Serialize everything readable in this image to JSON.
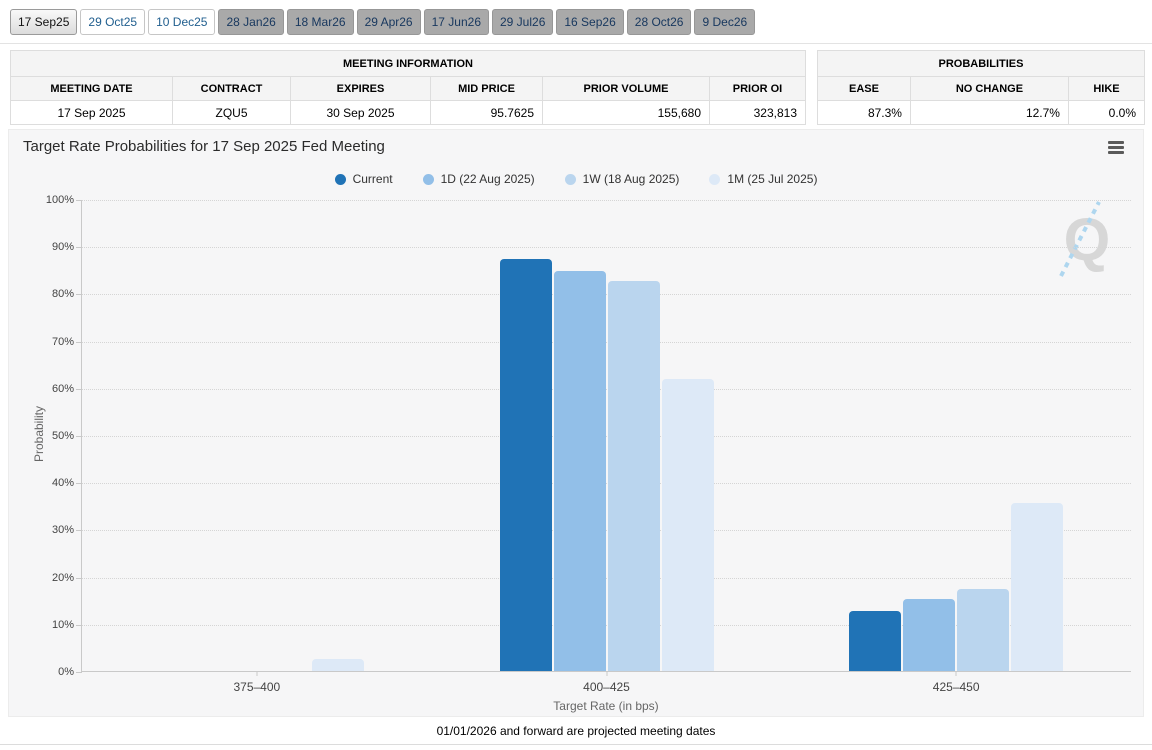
{
  "tabs": [
    {
      "label": "17 Sep25",
      "state": "active"
    },
    {
      "label": "29 Oct25",
      "state": "open"
    },
    {
      "label": "10 Dec25",
      "state": "open"
    },
    {
      "label": "28 Jan26",
      "state": "projected"
    },
    {
      "label": "18 Mar26",
      "state": "projected"
    },
    {
      "label": "29 Apr26",
      "state": "projected"
    },
    {
      "label": "17 Jun26",
      "state": "projected"
    },
    {
      "label": "29 Jul26",
      "state": "projected"
    },
    {
      "label": "16 Sep26",
      "state": "projected"
    },
    {
      "label": "28 Oct26",
      "state": "projected"
    },
    {
      "label": "9 Dec26",
      "state": "projected"
    }
  ],
  "meeting_information": {
    "title": "MEETING INFORMATION",
    "columns": [
      "MEETING DATE",
      "CONTRACT",
      "EXPIRES",
      "MID PRICE",
      "PRIOR VOLUME",
      "PRIOR OI"
    ],
    "row": [
      "17 Sep 2025",
      "ZQU5",
      "30 Sep 2025",
      "95.7625",
      "155,680",
      "323,813"
    ]
  },
  "probabilities": {
    "title": "PROBABILITIES",
    "columns": [
      "EASE",
      "NO CHANGE",
      "HIKE"
    ],
    "row": [
      "87.3%",
      "12.7%",
      "0.0%"
    ]
  },
  "chart_data": {
    "type": "bar",
    "title": "Target Rate Probabilities for 17 Sep 2025 Fed Meeting",
    "categories": [
      "375–400",
      "400–425",
      "425–450"
    ],
    "series": [
      {
        "name": "Current",
        "color": "#2073b6",
        "values": [
          0,
          87.3,
          12.7
        ]
      },
      {
        "name": "1D (22 Aug 2025)",
        "color": "#92bfe8",
        "values": [
          0,
          84.7,
          15.3
        ]
      },
      {
        "name": "1W (18 Aug 2025)",
        "color": "#bad5ee",
        "values": [
          0,
          82.6,
          17.4
        ]
      },
      {
        "name": "1M (25 Jul 2025)",
        "color": "#dde9f7",
        "values": [
          2.5,
          61.9,
          35.6
        ]
      }
    ],
    "xlabel": "Target Rate (in bps)",
    "ylabel": "Probability",
    "ylim": [
      0,
      100
    ],
    "ytick_step": 10,
    "ytick_suffix": "%",
    "grid": "dotted-horizontal",
    "legend_position": "top-center"
  },
  "colors": {
    "tab_open_text": "#215f8f",
    "tab_projected_bg": "#a9a9a9",
    "tab_projected_text": "#17375e",
    "axis_text": "#444444",
    "panel_bg": "#f6f6f7",
    "watermark_gray": "#d4d4d4",
    "watermark_blue": "#a7d3ef"
  },
  "watermark_letter": "Q",
  "footnote": "01/01/2026 and forward are projected meeting dates"
}
